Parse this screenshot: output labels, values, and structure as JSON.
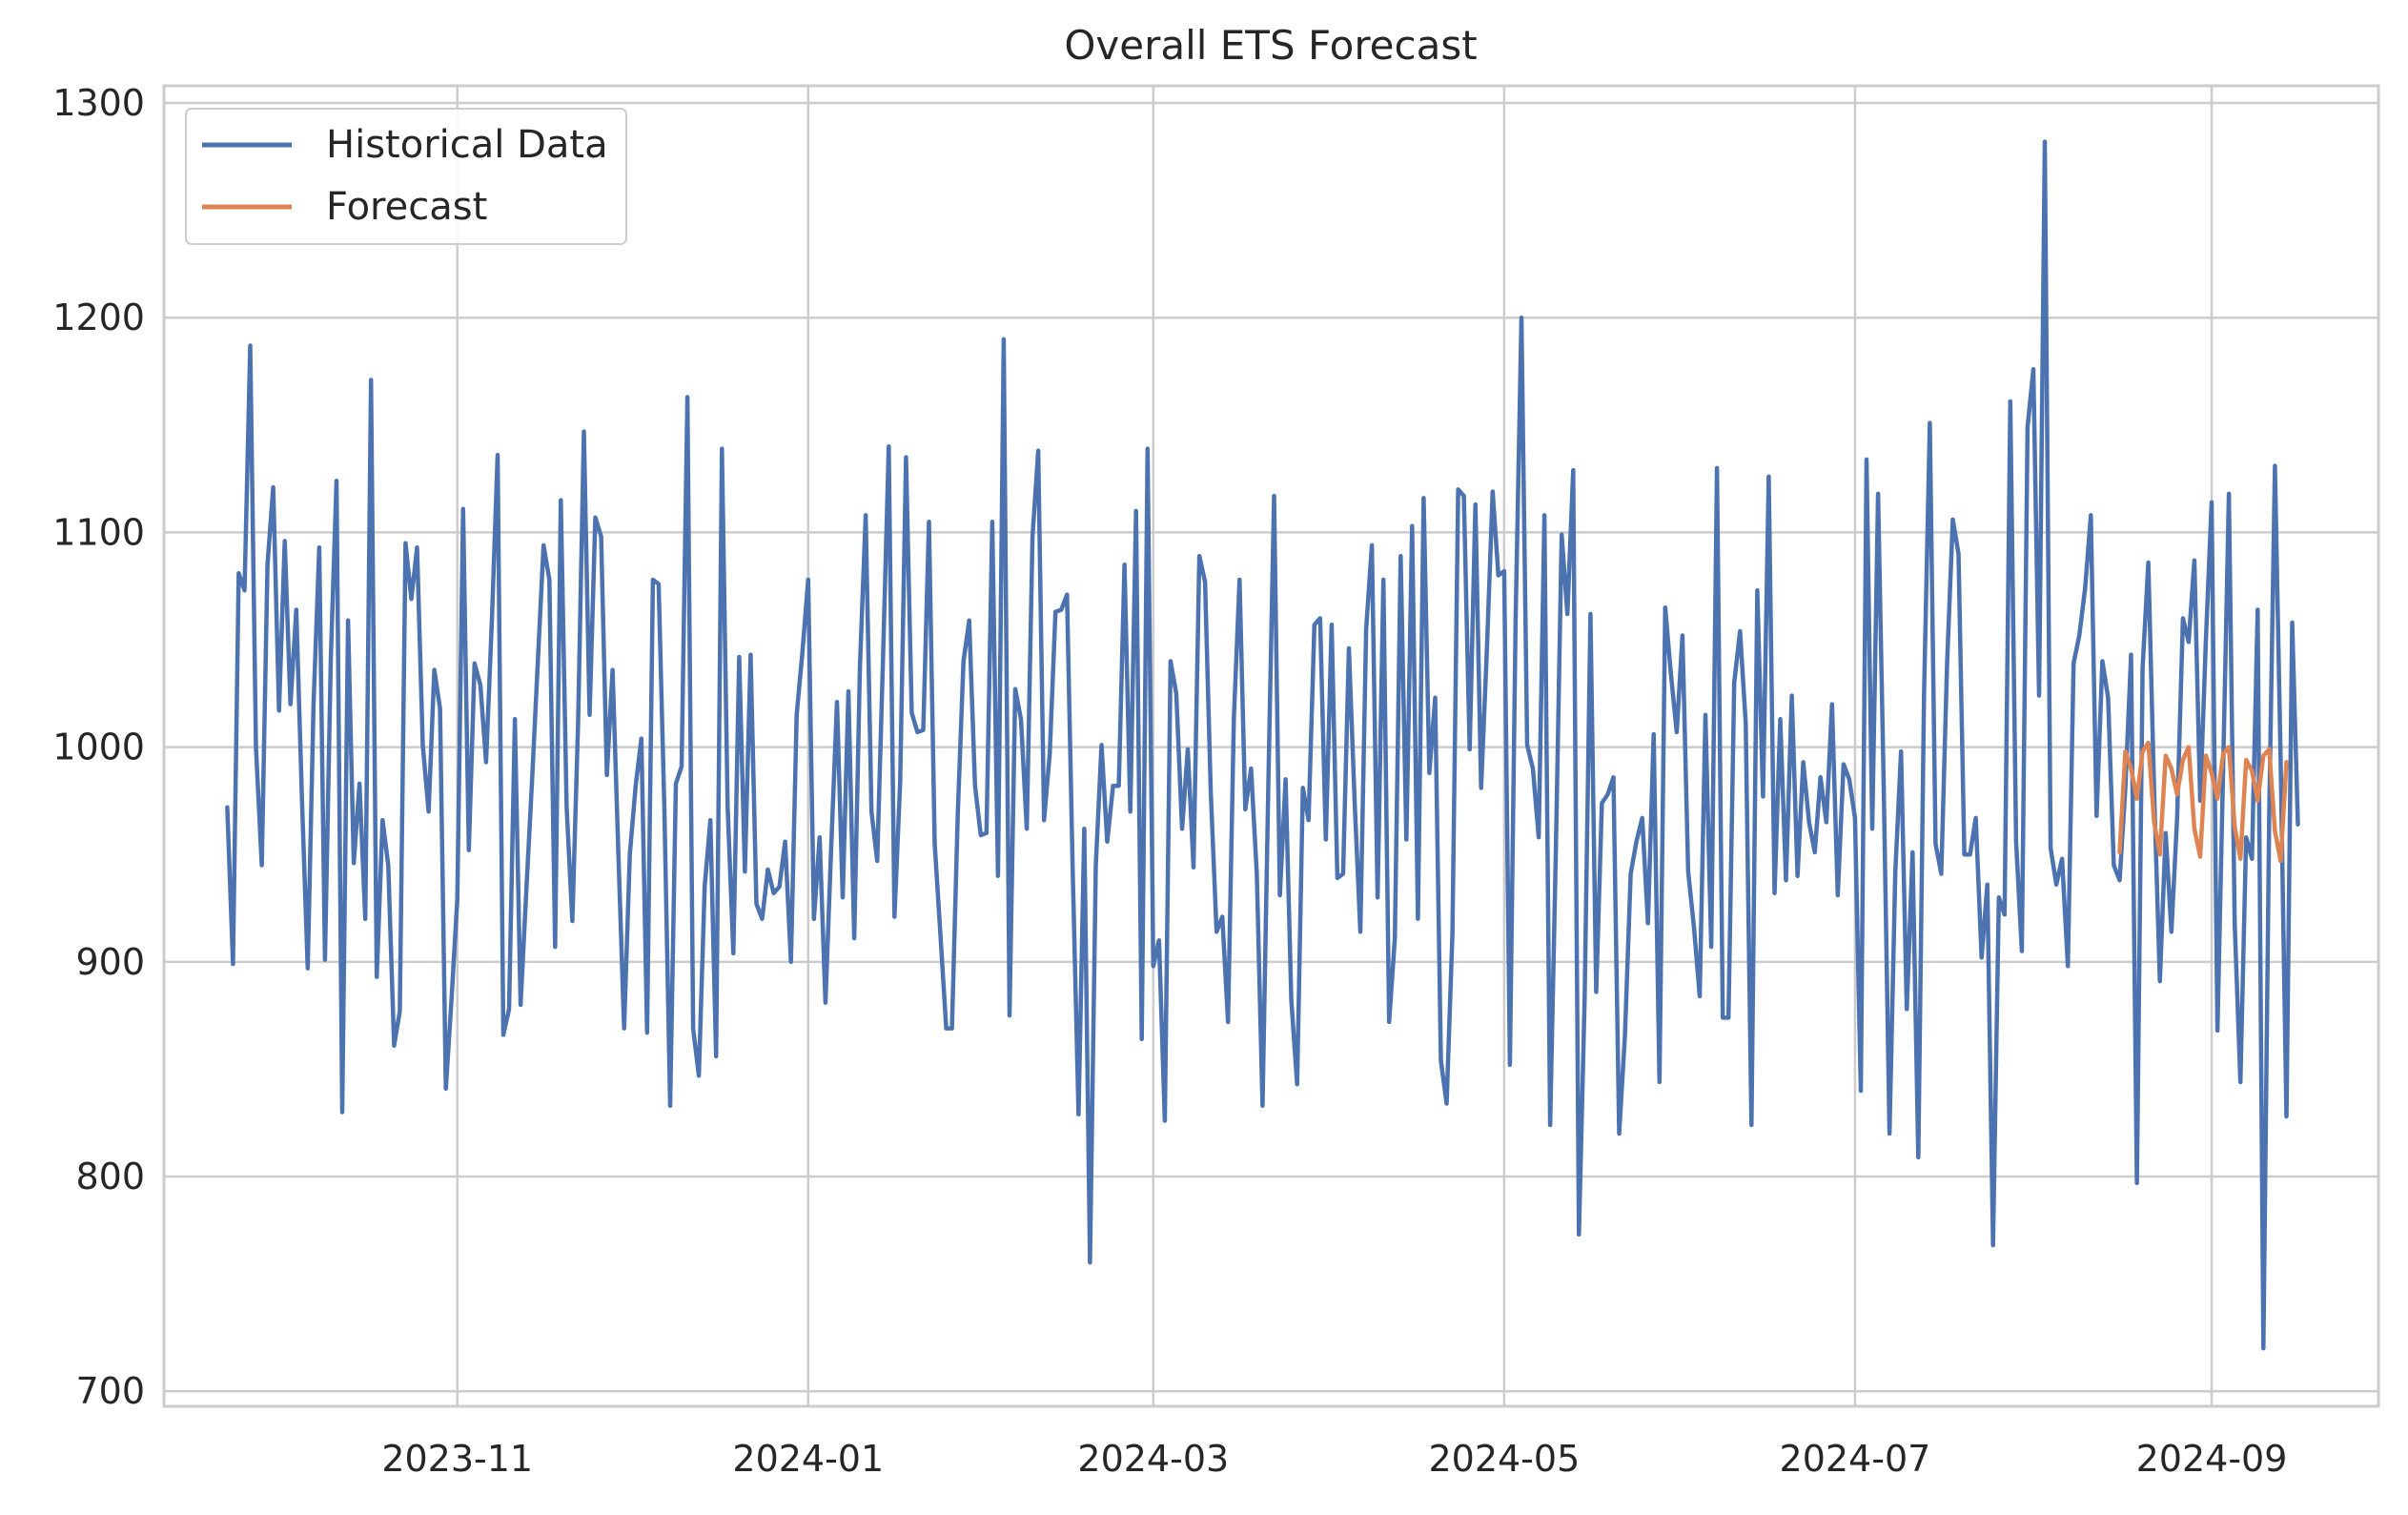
{
  "chart_data": {
    "type": "line",
    "title": "Overall ETS Forecast",
    "xlabel": "",
    "ylabel": "",
    "ylim": [
      693,
      1308
    ],
    "xlim": [
      "2023-09-11",
      "2024-09-30"
    ],
    "x_ticks": [
      "2023-11-01",
      "2024-01-01",
      "2024-03-01",
      "2024-05-01",
      "2024-07-01",
      "2024-09-01"
    ],
    "x_tick_labels": [
      "2023-11",
      "2024-01",
      "2024-03",
      "2024-05",
      "2024-07",
      "2024-09"
    ],
    "y_ticks": [
      700,
      800,
      900,
      1000,
      1100,
      1200,
      1300
    ],
    "y_tick_labels": [
      "700",
      "800",
      "900",
      "1000",
      "1100",
      "1200",
      "1300"
    ],
    "grid": true,
    "legend": "top-left",
    "series": [
      {
        "name": "Historical Data",
        "color": "#4c72b0",
        "start_date": "2023-09-22",
        "values": [
          972,
          899,
          1081,
          1073,
          1187,
          1000,
          945,
          1085,
          1121,
          1017,
          1096,
          1020,
          1064,
          975,
          897,
          1020,
          1093,
          901,
          1041,
          1124,
          830,
          1059,
          946,
          983,
          920,
          1171,
          893,
          966,
          945,
          861,
          877,
          1095,
          1069,
          1093,
          1001,
          970,
          1036,
          1018,
          841,
          883,
          929,
          1111,
          952,
          1039,
          1029,
          993,
          1058,
          1136,
          866,
          878,
          1013,
          880,
          933,
          985,
          1040,
          1094,
          1078,
          907,
          1115,
          972,
          919,
          1011,
          1147,
          1015,
          1107,
          1098,
          987,
          1036,
          950,
          869,
          950,
          982,
          1004,
          867,
          1078,
          1076,
          972,
          833,
          983,
          991,
          1163,
          869,
          847,
          935,
          966,
          856,
          1139,
          972,
          904,
          1042,
          942,
          1043,
          927,
          920,
          943,
          932,
          935,
          956,
          900,
          1015,
          1044,
          1078,
          920,
          958,
          881,
          953,
          1021,
          930,
          1026,
          911,
          1038,
          1108,
          970,
          947,
          1040,
          1140,
          921,
          984,
          1135,
          1016,
          1007,
          1008,
          1105,
          955,
          912,
          869,
          869,
          969,
          1040,
          1059,
          982,
          959,
          960,
          1105,
          940,
          1190,
          875,
          1027,
          1013,
          962,
          1098,
          1138,
          966,
          997,
          1063,
          1064,
          1071,
          942,
          829,
          962,
          760,
          945,
          1001,
          956,
          982,
          982,
          1085,
          970,
          1110,
          864,
          1139,
          898,
          910,
          826,
          1040,
          1025,
          962,
          999,
          944,
          1089,
          1077,
          979,
          914,
          921,
          872,
          1013,
          1078,
          971,
          990,
          941,
          833,
          983,
          1117,
          931,
          985,
          882,
          843,
          981,
          966,
          1057,
          1060,
          957,
          1057,
          939,
          941,
          1046,
          975,
          914,
          1055,
          1094,
          930,
          1078,
          872,
          911,
          1089,
          957,
          1103,
          920,
          1116,
          988,
          1023,
          854,
          834,
          913,
          1120,
          1117,
          999,
          1113,
          981,
          1046,
          1119,
          1080,
          1082,
          852,
          1060,
          1200,
          1001,
          990,
          958,
          1108,
          824,
          954,
          1099,
          1062,
          1129,
          773,
          883,
          1062,
          886,
          974,
          978,
          986,
          820,
          866,
          941,
          956,
          967,
          918,
          1006,
          844,
          1065,
          1034,
          1007,
          1052,
          942,
          916,
          884,
          1015,
          907,
          1130,
          874,
          874,
          1030,
          1054,
          1011,
          824,
          1073,
          977,
          1126,
          932,
          1013,
          938,
          1024,
          940,
          993,
          965,
          951,
          986,
          965,
          1020,
          931,
          992,
          985,
          967,
          840,
          1134,
          962,
          1118,
          980,
          820,
          942,
          998,
          878,
          951,
          809,
          1024,
          1151,
          955,
          941,
          1039,
          1106,
          1090,
          950,
          950,
          967,
          902,
          936,
          768,
          930,
          922,
          1161,
          956,
          905,
          1149,
          1176,
          1024,
          1282,
          953,
          936,
          948,
          898,
          1039,
          1052,
          1074,
          1108,
          968,
          1040,
          1023,
          945,
          938,
          981,
          1043,
          797,
          1037,
          1086,
          979,
          891,
          960,
          914,
          967,
          1060,
          1049,
          1087,
          975,
          1050,
          1114,
          868,
          990,
          1118,
          918,
          844,
          958,
          948,
          1064,
          720,
          968,
          1131,
          994,
          828,
          1058,
          964
        ]
      },
      {
        "name": "Forecast",
        "color": "#dd8452",
        "start_date": "2024-08-16",
        "values": [
          951,
          998,
          990,
          976,
          998,
          1002,
          965,
          950,
          996,
          990,
          978,
          994,
          1000,
          962,
          949,
          996,
          988,
          976,
          997,
          1000,
          963,
          948,
          994,
          989,
          975,
          996,
          999,
          961,
          947,
          993
        ]
      }
    ]
  }
}
